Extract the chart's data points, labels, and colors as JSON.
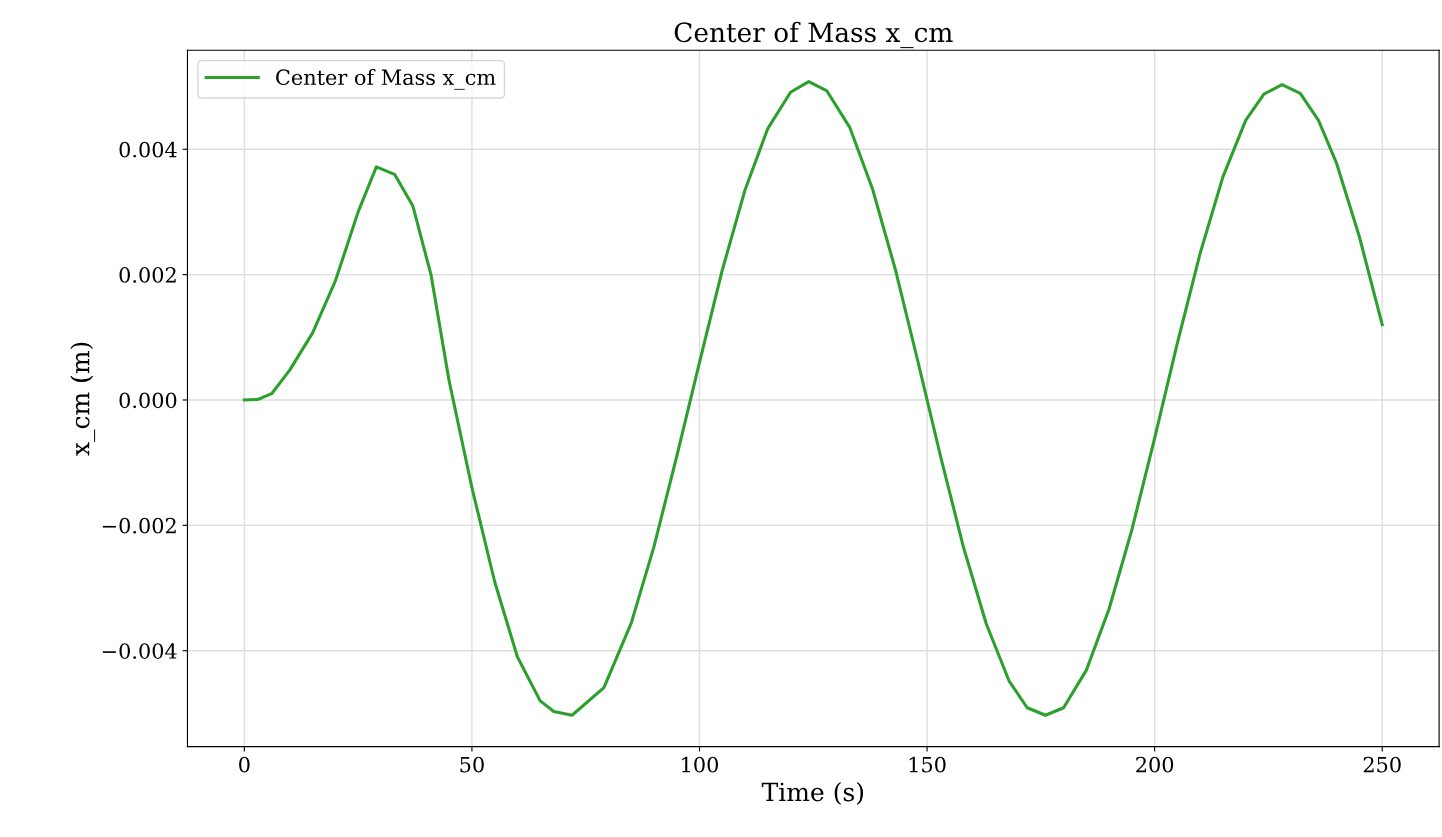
{
  "chart_data": {
    "type": "line",
    "title": "Center of Mass x_cm",
    "xlabel": "Time (s)",
    "ylabel": "x_cm (m)",
    "x": [
      0,
      3,
      6,
      10,
      15,
      20,
      25,
      29,
      33,
      37,
      41,
      45,
      50,
      55,
      60,
      65,
      68,
      72,
      79,
      85,
      90,
      95,
      100,
      105,
      110,
      115,
      120,
      124,
      128,
      133,
      138,
      143,
      148,
      153,
      158,
      163,
      168,
      172,
      176,
      180,
      185,
      190,
      195,
      200,
      205,
      210,
      215,
      220,
      224,
      228,
      232,
      236,
      240,
      245,
      250
    ],
    "series": [
      {
        "name": "Center of Mass x_cm",
        "color": "#2ca02c",
        "values": [
          0,
          1e-05,
          0.0001,
          0.00048,
          0.00107,
          0.0019,
          0.003,
          0.00372,
          0.0036,
          0.0031,
          0.002,
          0.0003,
          -0.0014,
          -0.0029,
          -0.0041,
          -0.0048,
          -0.00497,
          -0.00503,
          -0.00459,
          -0.00356,
          -0.00234,
          -0.0009,
          0.0006,
          0.00207,
          0.00335,
          0.00433,
          0.00491,
          0.00508,
          0.00493,
          0.00435,
          0.00337,
          0.00209,
          0.00061,
          -0.00091,
          -0.00235,
          -0.00357,
          -0.00448,
          -0.00491,
          -0.00503,
          -0.00491,
          -0.00431,
          -0.00333,
          -0.00207,
          -0.00061,
          0.00091,
          0.00234,
          0.00356,
          0.00446,
          0.00488,
          0.00503,
          0.00489,
          0.00446,
          0.00377,
          0.0026,
          0.0012
        ]
      }
    ],
    "xlim": [
      -12.5,
      262.5
    ],
    "xticks": [
      0,
      50,
      100,
      150,
      200,
      250
    ],
    "ylim": [
      -0.00553,
      0.00558
    ],
    "yticks": [
      {
        "value": -0.004,
        "label": "−0.004"
      },
      {
        "value": -0.002,
        "label": "−0.002"
      },
      {
        "value": 0,
        "label": "0.000"
      },
      {
        "value": 0.002,
        "label": "0.002"
      },
      {
        "value": 0.004,
        "label": "0.004"
      }
    ],
    "grid": true,
    "legend": "top left",
    "line_style": "solid",
    "marker": "none"
  }
}
